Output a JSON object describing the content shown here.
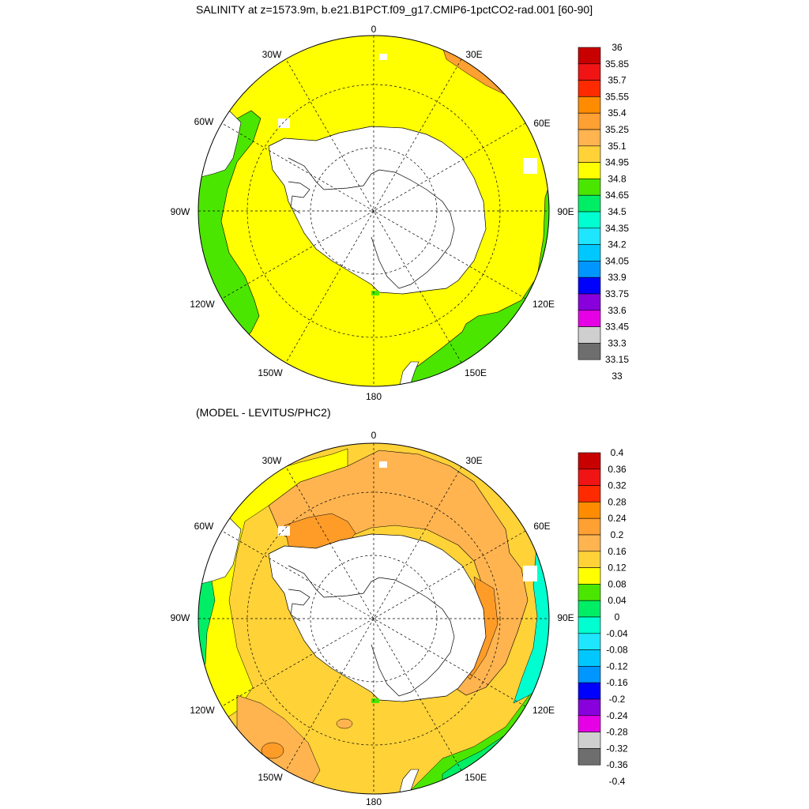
{
  "titles": {
    "top": "SALINITY at z=1573.9m, b.e21.B1PCT.f09_g17.CMIP6-1pctCO2-rad.001 [60-90]",
    "bottom": "(MODEL - LEVITUS/PHC2)"
  },
  "lon_labels": {
    "n": "0",
    "ne": "30E",
    "ene": "60E",
    "e": "90E",
    "ese": "120E",
    "se": "150E",
    "s": "180",
    "sw": "150W",
    "wsw": "120W",
    "w": "90W",
    "wnw": "60W",
    "nw": "30W"
  },
  "colorbars": {
    "top": {
      "labels": [
        "36",
        "35.85",
        "35.7",
        "35.55",
        "35.4",
        "35.25",
        "35.1",
        "34.95",
        "34.8",
        "34.65",
        "34.5",
        "34.35",
        "34.2",
        "34.05",
        "33.9",
        "33.75",
        "33.6",
        "33.45",
        "33.3",
        "33.15",
        "33"
      ],
      "colors": [
        "#c80000",
        "#f01414",
        "#ff2a00",
        "#ff8c00",
        "#ffa032",
        "#ffb450",
        "#ffd238",
        "#ffff00",
        "#4be600",
        "#00ee66",
        "#00ffd0",
        "#1ee6ff",
        "#00c8ff",
        "#0096ff",
        "#0000ff",
        "#8800dc",
        "#e600e6",
        "#cfcfcf",
        "#6e6e6e"
      ]
    },
    "bottom": {
      "labels": [
        "0.4",
        "0.36",
        "0.32",
        "0.28",
        "0.24",
        "0.2",
        "0.16",
        "0.12",
        "0.08",
        "0.04",
        "0",
        "-0.04",
        "-0.08",
        "-0.12",
        "-0.16",
        "-0.2",
        "-0.24",
        "-0.28",
        "-0.32",
        "-0.36",
        "-0.4"
      ],
      "colors": [
        "#c80000",
        "#f01414",
        "#ff2a00",
        "#ff8c00",
        "#ffa032",
        "#ffb450",
        "#ffd238",
        "#ffff00",
        "#4be600",
        "#00ee66",
        "#00ffd0",
        "#1ee6ff",
        "#00c8ff",
        "#0096ff",
        "#0000ff",
        "#8800dc",
        "#e600e6",
        "#cfcfcf",
        "#6e6e6e"
      ]
    }
  }
}
